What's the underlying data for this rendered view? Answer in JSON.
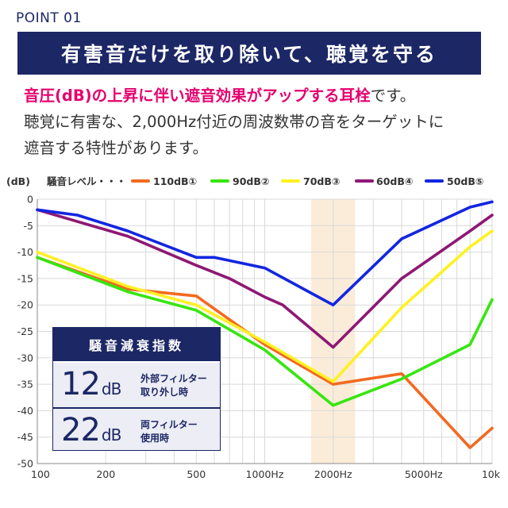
{
  "point_label": "POINT 01",
  "title": "有害音だけを取り除いて、聴覚を守る",
  "lead": {
    "highlight": "音圧(dB)の上昇に伴い遮音効果がアップする耳栓",
    "tail": "です。",
    "line2": "聴覚に有害な、2,000Hz付近の周波数帯の音をターゲットに",
    "line3": "遮音する特性があります。"
  },
  "panel": {
    "title": "騒音減衰指数",
    "row1": {
      "value": "12",
      "unit": "dB",
      "desc_line1": "外部フィルター",
      "desc_line2": "取り外し時"
    },
    "row2": {
      "value": "22",
      "unit": "dB",
      "desc_line1": "両フィルター",
      "desc_line2": "使用時"
    }
  },
  "chart_data": {
    "type": "line",
    "title": "",
    "ylabel": "(dB)",
    "xlabel": "",
    "legend_title": "騒音レベル・・・",
    "xscale": "log",
    "xlim": [
      100,
      10000
    ],
    "ylim": [
      -50,
      0
    ],
    "grid": true,
    "highlight_band_hz": [
      1600,
      2500
    ],
    "x_ticks": [
      {
        "value": 100,
        "label": "100"
      },
      {
        "value": 200,
        "label": "200"
      },
      {
        "value": 500,
        "label": "500"
      },
      {
        "value": 1000,
        "label": "1000Hz"
      },
      {
        "value": 2000,
        "label": "2000Hz"
      },
      {
        "value": 5000,
        "label": "5000Hz"
      },
      {
        "value": 10000,
        "label": "10k"
      }
    ],
    "y_ticks": [
      0,
      -5,
      -10,
      -15,
      -20,
      -25,
      -30,
      -35,
      -40,
      -45,
      -50
    ],
    "series": [
      {
        "name": "110dB①",
        "color": "#f26a21",
        "points": [
          [
            100,
            -11
          ],
          [
            250,
            -17
          ],
          [
            500,
            -18.3
          ],
          [
            1000,
            -27.5
          ],
          [
            2000,
            -35
          ],
          [
            4000,
            -33
          ],
          [
            8000,
            -47
          ],
          [
            10000,
            -43.3
          ]
        ]
      },
      {
        "name": "90dB②",
        "color": "#37e60f",
        "points": [
          [
            100,
            -11
          ],
          [
            250,
            -17.5
          ],
          [
            500,
            -21
          ],
          [
            1000,
            -28.5
          ],
          [
            2000,
            -39
          ],
          [
            4000,
            -34
          ],
          [
            8000,
            -27.5
          ],
          [
            10000,
            -19
          ]
        ]
      },
      {
        "name": "70dB③",
        "color": "#fff121",
        "points": [
          [
            100,
            -10
          ],
          [
            250,
            -16.5
          ],
          [
            500,
            -20
          ],
          [
            1000,
            -27
          ],
          [
            2000,
            -34.5
          ],
          [
            4000,
            -20.5
          ],
          [
            8000,
            -9
          ],
          [
            10000,
            -6
          ]
        ]
      },
      {
        "name": "60dB④",
        "color": "#8e1874",
        "points": [
          [
            100,
            -2
          ],
          [
            250,
            -7
          ],
          [
            500,
            -12.5
          ],
          [
            700,
            -15
          ],
          [
            1000,
            -18.5
          ],
          [
            1200,
            -20
          ],
          [
            2000,
            -28
          ],
          [
            4000,
            -15
          ],
          [
            8000,
            -6
          ],
          [
            10000,
            -3
          ]
        ]
      },
      {
        "name": "50dB⑤",
        "color": "#1226e0",
        "points": [
          [
            100,
            -2
          ],
          [
            150,
            -3
          ],
          [
            250,
            -6
          ],
          [
            500,
            -11
          ],
          [
            600,
            -11
          ],
          [
            1000,
            -13
          ],
          [
            2000,
            -20
          ],
          [
            4000,
            -7.5
          ],
          [
            8000,
            -1.5
          ],
          [
            10000,
            -0.5
          ]
        ]
      }
    ]
  }
}
